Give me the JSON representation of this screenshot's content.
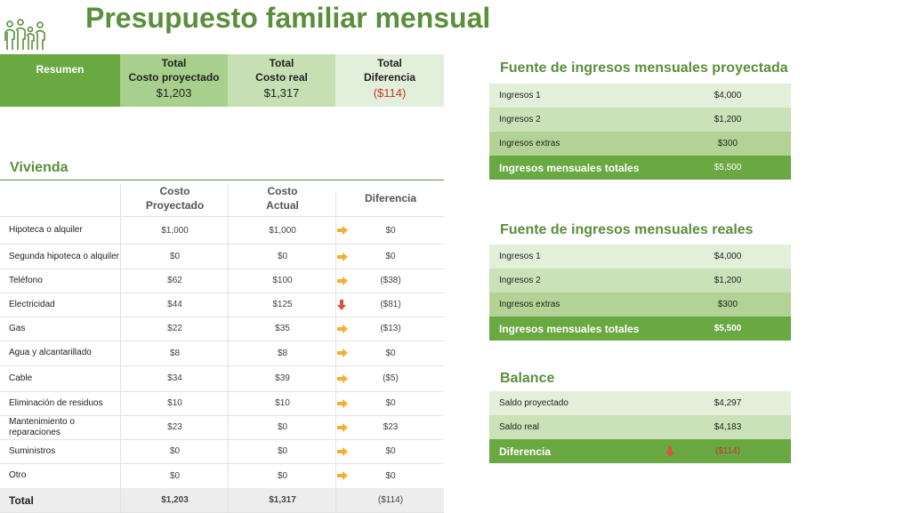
{
  "title": "Presupuesto familiar mensual",
  "colors": {
    "accent": "#6aa842",
    "title": "#5a8f3c",
    "negative": "#c0392b",
    "arrow_neutral": "#f0b030",
    "arrow_down": "#d9533a"
  },
  "summary": {
    "label": "Resumen",
    "cols": [
      {
        "h1": "Total",
        "h2": "Costo proyectado",
        "value": "$1,203"
      },
      {
        "h1": "Total",
        "h2": "Costo real",
        "value": "$1,317"
      },
      {
        "h1": "Total",
        "h2": "Diferencia",
        "value": "($114)"
      }
    ]
  },
  "vivienda": {
    "title": "Vivienda",
    "headers": {
      "h1a": "Costo",
      "h1b": "Proyectado",
      "h2a": "Costo",
      "h2b": "Actual",
      "h3": "Diferencia"
    },
    "rows": [
      {
        "name": "Hipoteca o alquiler",
        "proj": "$1,000",
        "real": "$1,000",
        "diff": "$0",
        "arrow": "right-arrow-icon"
      },
      {
        "name": "Segunda hipoteca o alquiler",
        "proj": "$0",
        "real": "$0",
        "diff": "$0",
        "arrow": "right-arrow-icon"
      },
      {
        "name": "Teléfono",
        "proj": "$62",
        "real": "$100",
        "diff": "($38)",
        "arrow": "right-arrow-icon"
      },
      {
        "name": "Electricidad",
        "proj": "$44",
        "real": "$125",
        "diff": "($81)",
        "arrow": "down-arrow-icon"
      },
      {
        "name": "Gas",
        "proj": "$22",
        "real": "$35",
        "diff": "($13)",
        "arrow": "right-arrow-icon"
      },
      {
        "name": "Agua y alcantarillado",
        "proj": "$8",
        "real": "$8",
        "diff": "$0",
        "arrow": "right-arrow-icon"
      },
      {
        "name": "Cable",
        "proj": "$34",
        "real": "$39",
        "diff": "($5)",
        "arrow": "right-arrow-icon"
      },
      {
        "name": "Eliminación de residuos",
        "proj": "$10",
        "real": "$10",
        "diff": "$0",
        "arrow": "right-arrow-icon"
      },
      {
        "name": "Mantenimiento o reparaciones",
        "proj": "$23",
        "real": "$0",
        "diff": "$23",
        "arrow": "right-arrow-icon"
      },
      {
        "name": "Suministros",
        "proj": "$0",
        "real": "$0",
        "diff": "$0",
        "arrow": "right-arrow-icon"
      },
      {
        "name": "Otro",
        "proj": "$0",
        "real": "$0",
        "diff": "$0",
        "arrow": "right-arrow-icon"
      }
    ],
    "total": {
      "name": "Total",
      "proj": "$1,203",
      "real": "$1,317",
      "diff": "($114)"
    }
  },
  "ingresos_proyectados": {
    "title": "Fuente de ingresos mensuales proyectada",
    "rows": [
      {
        "label": "Ingresos 1",
        "value": "$4,000"
      },
      {
        "label": "Ingresos 2",
        "value": "$1,200"
      },
      {
        "label": "Ingresos extras",
        "value": "$300"
      }
    ],
    "total": {
      "label": "Ingresos mensuales totales",
      "value": "$5,500"
    }
  },
  "ingresos_reales": {
    "title": "Fuente de ingresos mensuales reales",
    "rows": [
      {
        "label": "Ingresos 1",
        "value": "$4,000"
      },
      {
        "label": "Ingresos 2",
        "value": "$1,200"
      },
      {
        "label": "Ingresos extras",
        "value": "$300"
      }
    ],
    "total": {
      "label": "Ingresos mensuales totales",
      "value": "$5,500"
    }
  },
  "balance": {
    "title": "Balance",
    "rows": [
      {
        "label": "Saldo proyectado",
        "value": "$4,297"
      },
      {
        "label": "Saldo real",
        "value": "$4,183"
      }
    ],
    "total": {
      "label": "Diferencia",
      "value": "($114)",
      "arrow": "down-arrow-icon"
    }
  }
}
